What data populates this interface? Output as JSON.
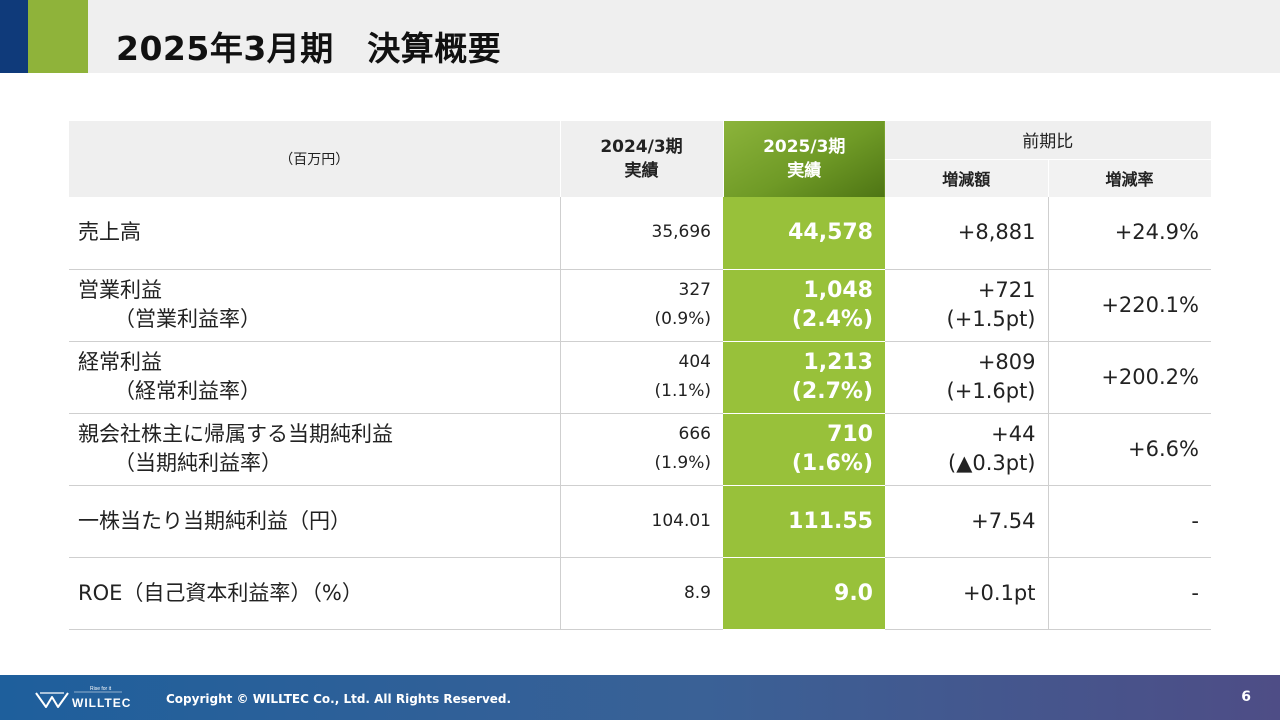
{
  "title": "2025年3月期　決算概要",
  "colors": {
    "header_blue": "#0f3a7a",
    "header_green": "#8fb33a",
    "current_col": "#98c13a"
  },
  "table": {
    "unit_header": "（百万円）",
    "prev_header": [
      "2024/3期",
      "実績"
    ],
    "cur_header": [
      "2025/3期",
      "実績"
    ],
    "comp_header": "前期比",
    "change_header": "増減額",
    "rate_header": "増減率",
    "rows": [
      {
        "label": "売上高",
        "prev": "35,696",
        "cur": "44,578",
        "change": "+8,881",
        "rate": "+24.9%"
      },
      {
        "label": "営業利益",
        "sub_label": "（営業利益率）",
        "prev": "327",
        "prev_sub": "(0.9%)",
        "cur": "1,048",
        "cur_sub": "(2.4%)",
        "change": "+721",
        "change_sub": "(+1.5pt)",
        "rate": "+220.1%"
      },
      {
        "label": "経常利益",
        "sub_label": "（経常利益率）",
        "prev": "404",
        "prev_sub": "(1.1%)",
        "cur": "1,213",
        "cur_sub": "(2.7%)",
        "change": "+809",
        "change_sub": "(+1.6pt)",
        "rate": "+200.2%"
      },
      {
        "label": "親会社株主に帰属する当期純利益",
        "sub_label": "（当期純利益率）",
        "prev": "666",
        "prev_sub": "(1.9%)",
        "cur": "710",
        "cur_sub": "(1.6%)",
        "change": "+44",
        "change_sub": "(▲0.3pt)",
        "rate": "+6.6%"
      },
      {
        "label": "一株当たり当期純利益（円）",
        "prev": "104.01",
        "cur": "111.55",
        "change": "+7.54",
        "rate": "-"
      },
      {
        "label": "ROE（自己資本利益率）（%）",
        "prev": "8.9",
        "cur": "9.0",
        "change": "+0.1pt",
        "rate": "-"
      }
    ]
  },
  "footer": {
    "logo_tagline": "Rise for it",
    "logo_text": "WILLTEC",
    "copyright": "Copyright © WILLTEC Co., Ltd. All Rights Reserved.",
    "page_number": "6"
  }
}
